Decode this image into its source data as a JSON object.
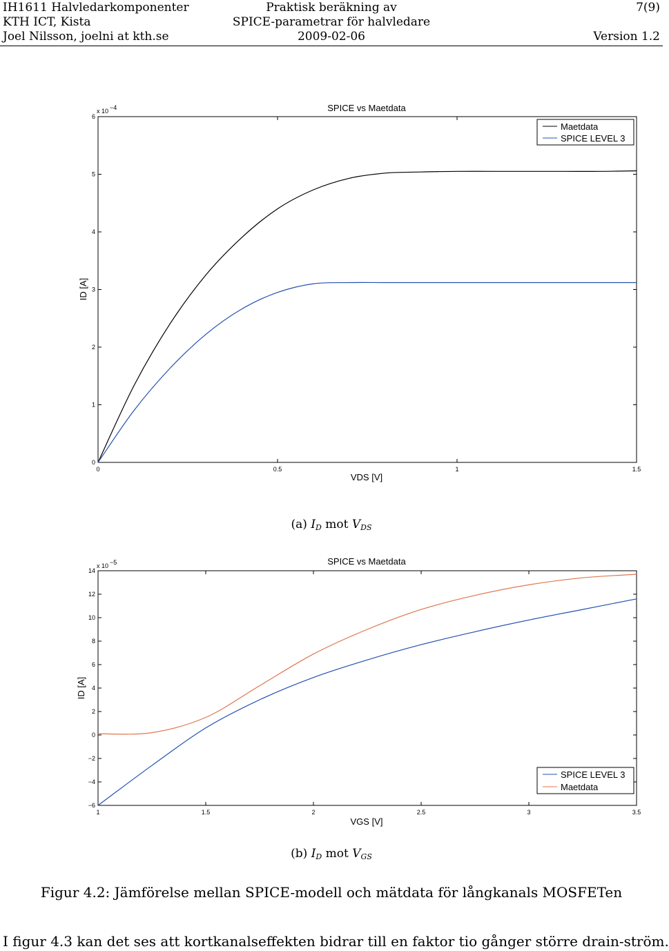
{
  "header": {
    "row1": {
      "left": "IH1611 Halvledarkomponenter",
      "center": "Praktisk beräkning av",
      "right": "7(9)"
    },
    "row2": {
      "left": "KTH ICT, Kista",
      "center": "SPICE-parametrar för halvledare",
      "right": ""
    },
    "row3": {
      "left": "Joel Nilsson, joelni at kth.se",
      "center": "2009-02-06",
      "right": "Version 1.2"
    }
  },
  "subcaptions": {
    "a": {
      "prefix": "(a)",
      "current": "I",
      "current_sub": "D",
      "word": "mot",
      "voltage": "V",
      "voltage_sub": "DS"
    },
    "b": {
      "prefix": "(b)",
      "current": "I",
      "current_sub": "D",
      "word": "mot",
      "voltage": "V",
      "voltage_sub": "GS"
    }
  },
  "figure_caption": "Figur 4.2: Jämförelse mellan SPICE-modell och mätdata för långkanals MOSFETen",
  "body_text": "I figur 4.3 kan det ses att kortkanalseffekten bidrar till en faktor tio gånger större drain-ström.",
  "chart_data": [
    {
      "type": "line",
      "title": "SPICE vs Maetdata",
      "xlabel": "VDS [V]",
      "ylabel": "ID [A]",
      "y_multiplier_base": "x 10",
      "y_multiplier_exp": "−4",
      "xlim": [
        0,
        1.5
      ],
      "ylim": [
        0,
        6
      ],
      "xticks": [
        0,
        0.5,
        1,
        1.5
      ],
      "xtick_labels": [
        "0",
        "0.5",
        "1",
        "1.5"
      ],
      "yticks": [
        0,
        1,
        2,
        3,
        4,
        5,
        6
      ],
      "ytick_labels": [
        "0",
        "1",
        "2",
        "3",
        "4",
        "5",
        "6"
      ],
      "grid": false,
      "legend_position": "top-right",
      "series": [
        {
          "name": "Maetdata",
          "color": "#000000",
          "x": [
            0,
            0.1,
            0.2,
            0.3,
            0.4,
            0.5,
            0.6,
            0.7,
            0.8,
            0.9,
            1.0,
            1.1,
            1.2,
            1.3,
            1.4,
            1.5
          ],
          "values": [
            0,
            1.33,
            2.4,
            3.25,
            3.9,
            4.4,
            4.73,
            4.93,
            5.02,
            5.04,
            5.05,
            5.05,
            5.05,
            5.05,
            5.05,
            5.06
          ]
        },
        {
          "name": "SPICE LEVEL 3",
          "color": "#2450b0",
          "x": [
            0,
            0.1,
            0.2,
            0.3,
            0.4,
            0.5,
            0.6,
            0.7,
            0.8,
            0.9,
            1.0,
            1.1,
            1.2,
            1.3,
            1.4,
            1.5
          ],
          "values": [
            0,
            0.9,
            1.63,
            2.22,
            2.66,
            2.95,
            3.1,
            3.12,
            3.12,
            3.12,
            3.12,
            3.12,
            3.12,
            3.12,
            3.12,
            3.12
          ]
        }
      ]
    },
    {
      "type": "line",
      "title": "SPICE vs Maetdata",
      "xlabel": "VGS [V]",
      "ylabel": "ID [A]",
      "y_multiplier_base": "x 10",
      "y_multiplier_exp": "−5",
      "xlim": [
        1,
        3.5
      ],
      "ylim": [
        -6,
        14
      ],
      "xticks": [
        1,
        1.5,
        2,
        2.5,
        3,
        3.5
      ],
      "xtick_labels": [
        "1",
        "1.5",
        "2",
        "2.5",
        "3",
        "3.5"
      ],
      "yticks": [
        -6,
        -4,
        -2,
        0,
        2,
        4,
        6,
        8,
        10,
        12,
        14
      ],
      "ytick_labels": [
        "−6",
        "−4",
        "−2",
        "0",
        "2",
        "4",
        "6",
        "8",
        "10",
        "12",
        "14"
      ],
      "grid": false,
      "legend_position": "bottom-right",
      "series": [
        {
          "name": "SPICE LEVEL 3",
          "color": "#2450b0",
          "x": [
            1,
            1.25,
            1.5,
            1.75,
            2,
            2.25,
            2.5,
            2.75,
            3,
            3.25,
            3.5
          ],
          "values": [
            -6,
            -2.6,
            0.6,
            3.0,
            4.9,
            6.4,
            7.7,
            8.8,
            9.8,
            10.7,
            11.6
          ]
        },
        {
          "name": "Maetdata",
          "color": "#e0754f",
          "x": [
            1,
            1.25,
            1.5,
            1.75,
            2,
            2.25,
            2.5,
            2.75,
            3,
            3.25,
            3.5
          ],
          "values": [
            0.1,
            0.2,
            1.5,
            4.2,
            6.9,
            9.0,
            10.7,
            11.9,
            12.8,
            13.4,
            13.7
          ]
        }
      ]
    }
  ]
}
